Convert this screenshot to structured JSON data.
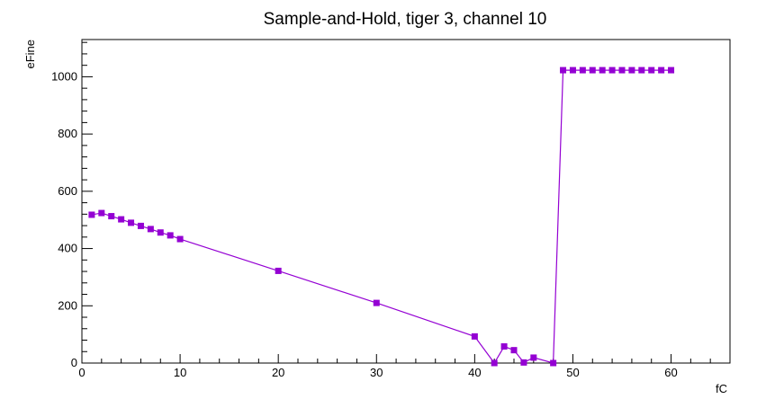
{
  "chart_data": {
    "type": "line",
    "title": "Sample-and-Hold, tiger 3, channel 10",
    "xlabel": "fC",
    "ylabel": "eFine",
    "xlim": [
      0,
      66
    ],
    "ylim": [
      0,
      1130
    ],
    "x_ticks": [
      0,
      10,
      20,
      30,
      40,
      50,
      60
    ],
    "y_ticks": [
      0,
      200,
      400,
      600,
      800,
      1000
    ],
    "grid": false,
    "series": [
      {
        "color": "#9400d3",
        "marker": "square",
        "x": [
          1,
          2,
          3,
          4,
          5,
          6,
          7,
          8,
          9,
          10,
          20,
          30,
          40,
          42,
          43,
          44,
          45,
          46,
          48,
          49,
          50,
          51,
          52,
          53,
          54,
          55,
          56,
          57,
          58,
          59,
          60
        ],
        "y": [
          518,
          524,
          513,
          502,
          490,
          479,
          468,
          456,
          446,
          433,
          322,
          210,
          93,
          0,
          58,
          45,
          2,
          19,
          0,
          1023,
          1023,
          1023,
          1023,
          1023,
          1023,
          1023,
          1023,
          1023,
          1023,
          1023,
          1023
        ]
      }
    ]
  }
}
